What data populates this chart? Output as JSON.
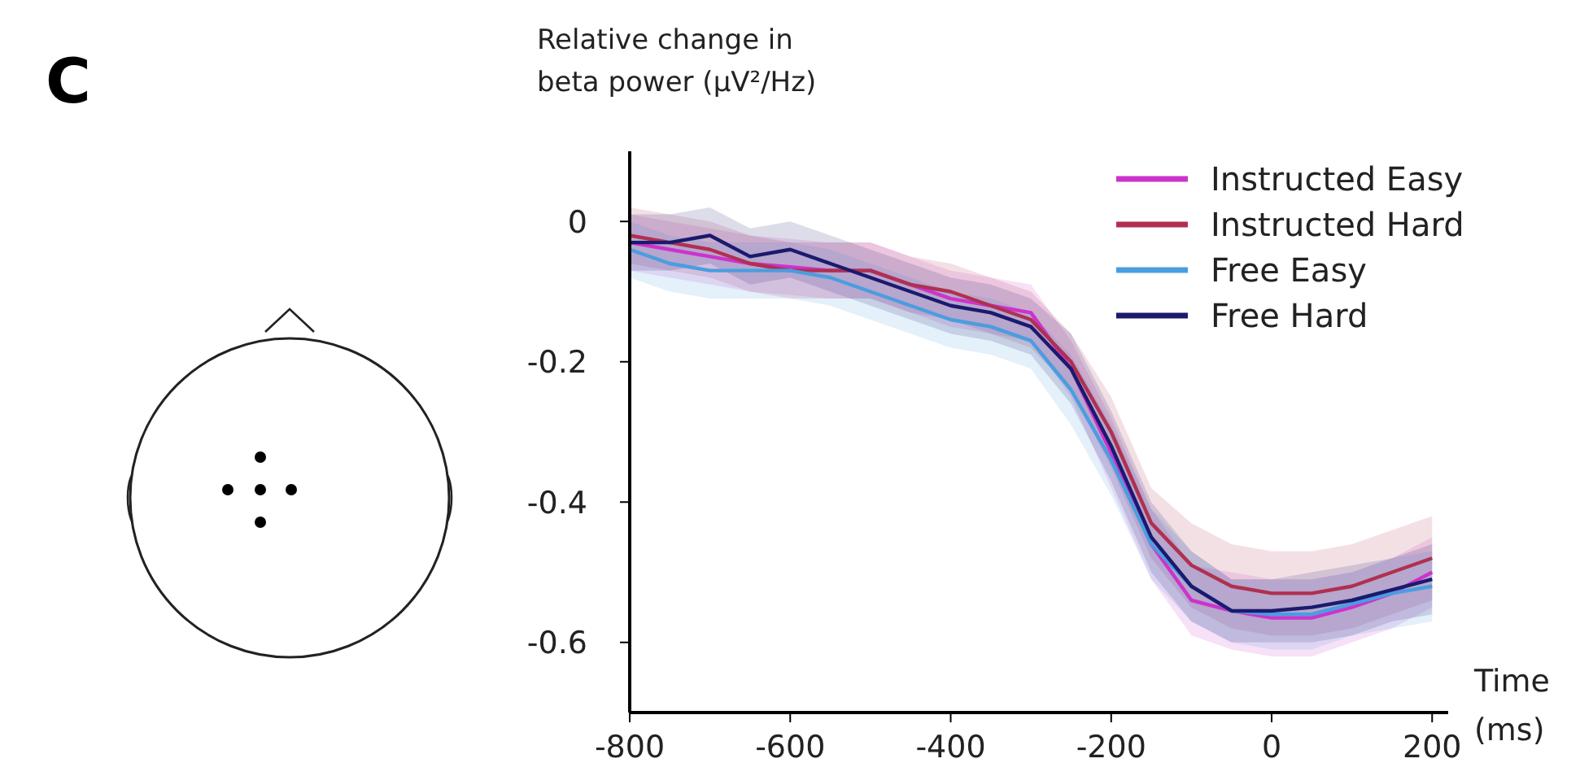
{
  "chart_data": {
    "type": "line",
    "title": "C",
    "xlabel": "Time (ms)",
    "ylabel": "Relative change in beta power (µV²/Hz)",
    "x": [
      -800,
      -750,
      -700,
      -650,
      -600,
      -550,
      -500,
      -450,
      -400,
      -350,
      -300,
      -250,
      -200,
      -150,
      -100,
      -50,
      0,
      50,
      100,
      150,
      200
    ],
    "xlim": [
      -800,
      220
    ],
    "xticks": [
      -800,
      -600,
      -400,
      -200,
      0,
      200
    ],
    "ylim": [
      -0.7,
      0.1
    ],
    "yticks": [
      0,
      -0.2,
      -0.4,
      -0.6
    ],
    "legend": "top right",
    "series": [
      {
        "name": "Instructed Easy",
        "color": "#cc33cc",
        "values": [
          -0.03,
          -0.04,
          -0.05,
          -0.06,
          -0.065,
          -0.07,
          -0.07,
          -0.09,
          -0.11,
          -0.12,
          -0.13,
          -0.21,
          -0.33,
          -0.46,
          -0.54,
          -0.555,
          -0.565,
          -0.565,
          -0.55,
          -0.53,
          -0.5
        ],
        "lower": [
          -0.07,
          -0.08,
          -0.09,
          -0.1,
          -0.105,
          -0.11,
          -0.11,
          -0.13,
          -0.15,
          -0.16,
          -0.17,
          -0.25,
          -0.38,
          -0.51,
          -0.59,
          -0.61,
          -0.62,
          -0.62,
          -0.6,
          -0.58,
          -0.55
        ],
        "upper": [
          0.01,
          0,
          -0.01,
          -0.02,
          -0.025,
          -0.03,
          -0.03,
          -0.05,
          -0.07,
          -0.08,
          -0.09,
          -0.17,
          -0.28,
          -0.41,
          -0.49,
          -0.5,
          -0.51,
          -0.51,
          -0.5,
          -0.48,
          -0.45
        ]
      },
      {
        "name": "Instructed Hard",
        "color": "#b03050",
        "values": [
          -0.02,
          -0.03,
          -0.04,
          -0.06,
          -0.07,
          -0.07,
          -0.07,
          -0.09,
          -0.1,
          -0.12,
          -0.14,
          -0.2,
          -0.3,
          -0.43,
          -0.49,
          -0.52,
          -0.53,
          -0.53,
          -0.52,
          -0.5,
          -0.48
        ],
        "lower": [
          -0.06,
          -0.07,
          -0.08,
          -0.1,
          -0.11,
          -0.11,
          -0.11,
          -0.13,
          -0.14,
          -0.16,
          -0.18,
          -0.24,
          -0.35,
          -0.48,
          -0.55,
          -0.58,
          -0.59,
          -0.59,
          -0.58,
          -0.56,
          -0.54
        ],
        "upper": [
          0.02,
          0.01,
          0,
          -0.02,
          -0.03,
          -0.03,
          -0.03,
          -0.05,
          -0.06,
          -0.08,
          -0.1,
          -0.16,
          -0.25,
          -0.38,
          -0.43,
          -0.46,
          -0.47,
          -0.47,
          -0.46,
          -0.44,
          -0.42
        ]
      },
      {
        "name": "Free Easy",
        "color": "#4a9de0",
        "values": [
          -0.04,
          -0.06,
          -0.07,
          -0.07,
          -0.07,
          -0.08,
          -0.1,
          -0.12,
          -0.14,
          -0.15,
          -0.17,
          -0.24,
          -0.34,
          -0.46,
          -0.52,
          -0.555,
          -0.56,
          -0.56,
          -0.545,
          -0.53,
          -0.52
        ],
        "lower": [
          -0.08,
          -0.1,
          -0.11,
          -0.11,
          -0.11,
          -0.12,
          -0.14,
          -0.16,
          -0.18,
          -0.19,
          -0.21,
          -0.29,
          -0.39,
          -0.51,
          -0.57,
          -0.6,
          -0.61,
          -0.61,
          -0.59,
          -0.58,
          -0.57
        ],
        "upper": [
          0,
          -0.02,
          -0.03,
          -0.03,
          -0.03,
          -0.04,
          -0.06,
          -0.08,
          -0.1,
          -0.11,
          -0.13,
          -0.19,
          -0.29,
          -0.41,
          -0.47,
          -0.51,
          -0.51,
          -0.51,
          -0.5,
          -0.48,
          -0.47
        ]
      },
      {
        "name": "Free Hard",
        "color": "#1a1a6e",
        "values": [
          -0.03,
          -0.03,
          -0.02,
          -0.05,
          -0.04,
          -0.06,
          -0.08,
          -0.1,
          -0.12,
          -0.13,
          -0.15,
          -0.21,
          -0.32,
          -0.45,
          -0.52,
          -0.555,
          -0.555,
          -0.55,
          -0.54,
          -0.525,
          -0.51
        ],
        "lower": [
          -0.07,
          -0.07,
          -0.06,
          -0.09,
          -0.08,
          -0.1,
          -0.12,
          -0.14,
          -0.16,
          -0.17,
          -0.19,
          -0.26,
          -0.37,
          -0.5,
          -0.57,
          -0.6,
          -0.6,
          -0.6,
          -0.59,
          -0.57,
          -0.56
        ],
        "upper": [
          0.01,
          0.01,
          0.02,
          -0.01,
          0,
          -0.02,
          -0.04,
          -0.06,
          -0.08,
          -0.09,
          -0.11,
          -0.16,
          -0.27,
          -0.4,
          -0.47,
          -0.51,
          -0.51,
          -0.5,
          -0.49,
          -0.48,
          -0.46
        ]
      }
    ]
  }
}
